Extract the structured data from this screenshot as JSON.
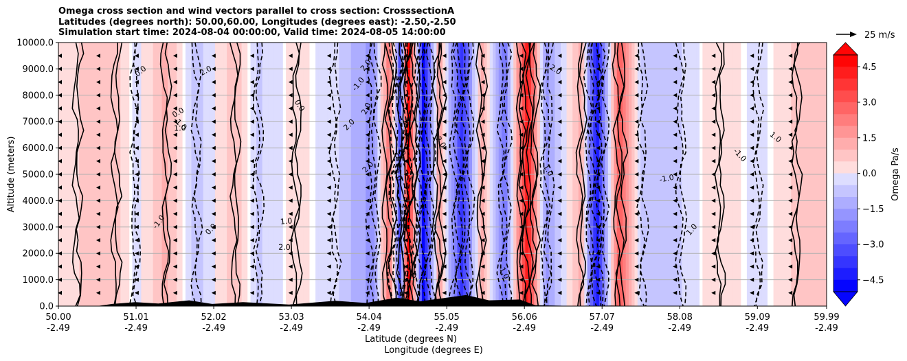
{
  "chart_data": {
    "type": "contour",
    "title_lines": [
      "Omega cross section and wind vectors parallel to cross section: CrosssectionA",
      "Latitudes (degrees north): 50.00,60.00, Longitudes (degrees east): -2.50,-2.50",
      "Simulation start time: 2024-08-04 00:00:00, Valid time: 2024-08-05 14:00:00"
    ],
    "ylabel": "Altitude (meters)",
    "xlabel_lines": [
      "Latitude (degrees N)",
      "Longitude (degrees E)"
    ],
    "ylim": [
      0,
      10000
    ],
    "y_ticks": [
      "0.0",
      "1000.0",
      "2000.0",
      "3000.0",
      "4000.0",
      "5000.0",
      "6000.0",
      "7000.0",
      "8000.0",
      "9000.0",
      "10000.0"
    ],
    "x_ticks": [
      {
        "lat": "50.00",
        "lon": "-2.49"
      },
      {
        "lat": "51.01",
        "lon": "-2.49"
      },
      {
        "lat": "52.02",
        "lon": "-2.49"
      },
      {
        "lat": "53.03",
        "lon": "-2.49"
      },
      {
        "lat": "54.04",
        "lon": "-2.49"
      },
      {
        "lat": "55.05",
        "lon": "-2.49"
      },
      {
        "lat": "56.06",
        "lon": "-2.49"
      },
      {
        "lat": "57.07",
        "lon": "-2.49"
      },
      {
        "lat": "58.08",
        "lon": "-2.49"
      },
      {
        "lat": "59.09",
        "lon": "-2.49"
      },
      {
        "lat": "59.99",
        "lon": "-2.49"
      }
    ],
    "colorbar": {
      "label": "Omega Pa/s",
      "range": [
        -5.0,
        5.0
      ],
      "ticks": [
        "4.5",
        "3.0",
        "1.5",
        "0.0",
        "−1.5",
        "−3.0",
        "−4.5"
      ],
      "levels": 20
    },
    "vector_key": {
      "label": "25 m/s"
    },
    "contour_labels": [
      "0.0",
      "1.0",
      "-1.0",
      "2.0"
    ],
    "omega_bands": [
      {
        "lat": 50.25,
        "value": 0.5
      },
      {
        "lat": 50.75,
        "value": 0.8
      },
      {
        "lat": 51.0,
        "value": -0.3
      },
      {
        "lat": 51.4,
        "value": 1.2
      },
      {
        "lat": 51.8,
        "value": -0.8
      },
      {
        "lat": 52.3,
        "value": 0.9
      },
      {
        "lat": 52.6,
        "value": -0.6
      },
      {
        "lat": 53.1,
        "value": 0.3
      },
      {
        "lat": 53.6,
        "value": -0.4
      },
      {
        "lat": 54.1,
        "value": -1.8
      },
      {
        "lat": 54.3,
        "value": 2.5
      },
      {
        "lat": 54.45,
        "value": -3.5
      },
      {
        "lat": 54.55,
        "value": 5.0
      },
      {
        "lat": 54.75,
        "value": -5.0
      },
      {
        "lat": 54.95,
        "value": 1.5
      },
      {
        "lat": 55.25,
        "value": -4.0
      },
      {
        "lat": 55.5,
        "value": 1.2
      },
      {
        "lat": 55.8,
        "value": -2.5
      },
      {
        "lat": 56.1,
        "value": 4.5
      },
      {
        "lat": 56.35,
        "value": -1.8
      },
      {
        "lat": 56.8,
        "value": 1.2
      },
      {
        "lat": 57.0,
        "value": -4.5
      },
      {
        "lat": 57.3,
        "value": 3.0
      },
      {
        "lat": 57.6,
        "value": -0.8
      },
      {
        "lat": 58.1,
        "value": -0.5
      },
      {
        "lat": 58.6,
        "value": 0.5
      },
      {
        "lat": 59.1,
        "value": -0.3
      },
      {
        "lat": 59.6,
        "value": 0.6
      }
    ],
    "terrain": [
      {
        "lat": 50.0,
        "alt": 0
      },
      {
        "lat": 50.5,
        "alt": 0
      },
      {
        "lat": 50.7,
        "alt": 80
      },
      {
        "lat": 51.0,
        "alt": 150
      },
      {
        "lat": 51.3,
        "alt": 100
      },
      {
        "lat": 51.7,
        "alt": 220
      },
      {
        "lat": 52.0,
        "alt": 80
      },
      {
        "lat": 52.4,
        "alt": 150
      },
      {
        "lat": 53.0,
        "alt": 60
      },
      {
        "lat": 53.6,
        "alt": 200
      },
      {
        "lat": 54.0,
        "alt": 120
      },
      {
        "lat": 54.4,
        "alt": 320
      },
      {
        "lat": 54.7,
        "alt": 180
      },
      {
        "lat": 55.0,
        "alt": 300
      },
      {
        "lat": 55.3,
        "alt": 420
      },
      {
        "lat": 55.6,
        "alt": 220
      },
      {
        "lat": 56.0,
        "alt": 250
      },
      {
        "lat": 56.2,
        "alt": 30
      },
      {
        "lat": 56.8,
        "alt": 0
      },
      {
        "lat": 57.2,
        "alt": 20
      },
      {
        "lat": 57.5,
        "alt": 0
      },
      {
        "lat": 59.99,
        "alt": 0
      }
    ],
    "wind_direction": "southward",
    "colors": {
      "positive": "#ff0000",
      "negative": "#0000ff",
      "axis": "#000000",
      "grid": "#b0b0b0"
    }
  }
}
